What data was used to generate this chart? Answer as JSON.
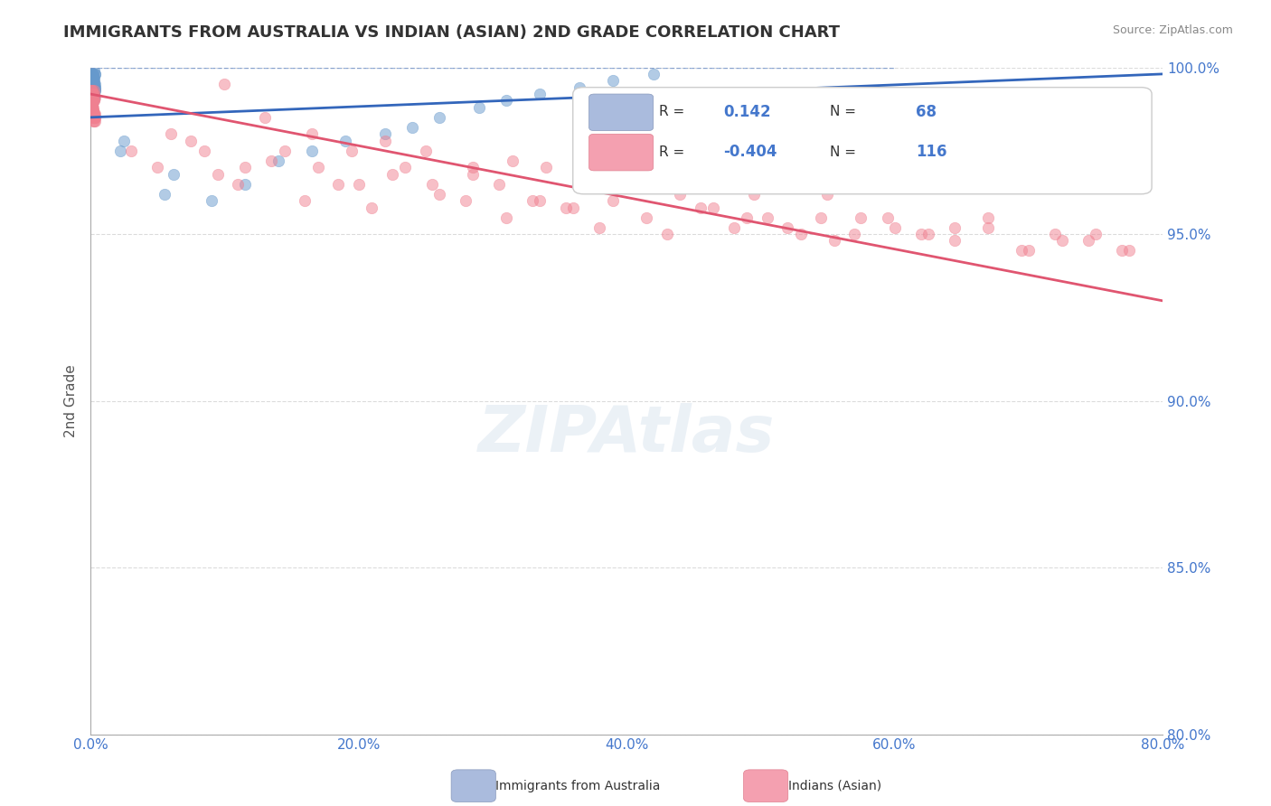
{
  "title": "IMMIGRANTS FROM AUSTRALIA VS INDIAN (ASIAN) 2ND GRADE CORRELATION CHART",
  "source": "Source: ZipAtlas.com",
  "xlabel_bottom": "",
  "ylabel": "2nd Grade",
  "xlim": [
    0.0,
    80.0
  ],
  "ylim": [
    80.0,
    100.0
  ],
  "x_ticks": [
    0.0,
    20.0,
    40.0,
    60.0,
    80.0
  ],
  "y_ticks": [
    80.0,
    85.0,
    90.0,
    95.0,
    100.0
  ],
  "legend_items": [
    {
      "label": "Immigrants from Australia",
      "color": "#a8c4e0",
      "R": 0.142,
      "N": 68
    },
    {
      "label": "Indians (Asian)",
      "color": "#f4a0b0",
      "R": -0.404,
      "N": 116
    }
  ],
  "watermark": "ZIPAtlas",
  "blue_scatter_x": [
    0.1,
    0.15,
    0.2,
    0.18,
    0.12,
    0.08,
    0.25,
    0.3,
    0.35,
    0.22,
    0.05,
    0.1,
    0.18,
    0.28,
    0.32,
    0.14,
    0.19,
    0.09,
    0.22,
    0.16,
    0.11,
    0.27,
    0.33,
    0.21,
    0.17,
    0.13,
    0.24,
    0.29,
    0.07,
    0.31,
    0.08,
    0.19,
    0.26,
    0.14,
    0.23,
    0.1,
    0.17,
    0.22,
    0.28,
    0.15,
    0.12,
    0.34,
    0.2,
    0.16,
    0.09,
    0.25,
    0.3,
    0.18,
    0.13,
    0.08,
    2.2,
    2.5,
    5.5,
    6.2,
    9.0,
    11.5,
    14.0,
    16.5,
    19.0,
    22.0,
    24.0,
    26.0,
    29.0,
    31.0,
    33.5,
    36.5,
    39.0,
    42.0
  ],
  "blue_scatter_y": [
    99.5,
    99.8,
    99.6,
    99.4,
    99.7,
    99.3,
    99.9,
    99.5,
    99.8,
    99.2,
    98.8,
    99.1,
    99.0,
    99.6,
    99.3,
    99.7,
    99.4,
    99.5,
    99.2,
    99.6,
    99.8,
    99.1,
    99.4,
    99.7,
    99.3,
    99.0,
    99.5,
    99.2,
    99.6,
    99.8,
    99.4,
    99.1,
    99.7,
    99.3,
    99.5,
    99.6,
    99.8,
    99.4,
    99.2,
    99.7,
    99.0,
    99.3,
    99.5,
    99.6,
    99.8,
    99.1,
    99.4,
    99.7,
    99.2,
    99.5,
    97.5,
    97.8,
    96.2,
    96.8,
    96.0,
    96.5,
    97.2,
    97.5,
    97.8,
    98.0,
    98.2,
    98.5,
    98.8,
    99.0,
    99.2,
    99.4,
    99.6,
    99.8
  ],
  "pink_scatter_x": [
    0.05,
    0.1,
    0.15,
    0.2,
    0.25,
    0.12,
    0.18,
    0.22,
    0.08,
    0.3,
    0.35,
    0.28,
    0.14,
    0.19,
    0.09,
    0.24,
    0.17,
    0.11,
    0.29,
    0.16,
    0.13,
    0.27,
    0.32,
    0.21,
    0.07,
    0.31,
    0.23,
    0.1,
    0.26,
    0.14,
    0.2,
    0.18,
    0.15,
    0.25,
    0.33,
    0.08,
    0.19,
    0.22,
    0.28,
    0.12,
    3.0,
    5.0,
    7.5,
    9.5,
    11.0,
    13.5,
    16.0,
    18.5,
    21.0,
    23.5,
    26.0,
    28.5,
    31.0,
    33.0,
    35.5,
    38.0,
    40.5,
    43.0,
    45.5,
    48.0,
    50.5,
    53.0,
    55.5,
    57.5,
    60.0,
    62.5,
    64.5,
    67.0,
    70.0,
    72.5,
    75.0,
    77.0,
    6.0,
    8.5,
    11.5,
    14.5,
    17.0,
    20.0,
    22.5,
    25.5,
    28.0,
    30.5,
    33.5,
    36.0,
    39.0,
    41.5,
    44.0,
    46.5,
    49.0,
    52.0,
    54.5,
    57.0,
    59.5,
    62.0,
    64.5,
    67.0,
    69.5,
    72.0,
    74.5,
    77.5,
    10.0,
    13.0,
    16.5,
    19.5,
    22.0,
    25.0,
    28.5,
    31.5,
    34.0,
    37.0,
    40.0,
    43.5,
    46.5,
    49.5,
    52.5,
    55.0
  ],
  "pink_scatter_y": [
    99.0,
    99.2,
    98.8,
    99.1,
    98.5,
    99.3,
    98.7,
    99.0,
    98.9,
    98.4,
    98.6,
    99.2,
    98.8,
    99.1,
    98.7,
    99.3,
    98.5,
    99.0,
    98.6,
    99.2,
    98.8,
    98.4,
    99.1,
    98.7,
    99.3,
    98.5,
    99.0,
    98.9,
    98.6,
    98.8,
    99.2,
    98.4,
    98.7,
    99.0,
    98.5,
    99.3,
    98.8,
    99.1,
    98.6,
    99.0,
    97.5,
    97.0,
    97.8,
    96.8,
    96.5,
    97.2,
    96.0,
    96.5,
    95.8,
    97.0,
    96.2,
    96.8,
    95.5,
    96.0,
    95.8,
    95.2,
    96.5,
    95.0,
    95.8,
    95.2,
    95.5,
    95.0,
    94.8,
    95.5,
    95.2,
    95.0,
    94.8,
    95.2,
    94.5,
    94.8,
    95.0,
    94.5,
    98.0,
    97.5,
    97.0,
    97.5,
    97.0,
    96.5,
    96.8,
    96.5,
    96.0,
    96.5,
    96.0,
    95.8,
    96.0,
    95.5,
    96.2,
    95.8,
    95.5,
    95.2,
    95.5,
    95.0,
    95.5,
    95.0,
    95.2,
    95.5,
    94.5,
    95.0,
    94.8,
    94.5,
    99.5,
    98.5,
    98.0,
    97.5,
    97.8,
    97.5,
    97.0,
    97.2,
    97.0,
    96.8,
    96.5,
    96.8,
    96.5,
    96.2,
    96.5,
    96.2
  ],
  "blue_line_x": [
    0.0,
    80.0
  ],
  "blue_line_y": [
    98.5,
    99.8
  ],
  "pink_line_x": [
    0.0,
    80.0
  ],
  "pink_line_y": [
    99.2,
    93.0
  ],
  "scatter_size": 80,
  "scatter_alpha": 0.5,
  "blue_color": "#6699cc",
  "pink_color": "#f08090",
  "blue_line_color": "#3366bb",
  "pink_line_color": "#e05570",
  "grid_color": "#cccccc",
  "title_color": "#333333",
  "axis_label_color": "#555555",
  "tick_label_color": "#4477cc",
  "source_color": "#888888"
}
